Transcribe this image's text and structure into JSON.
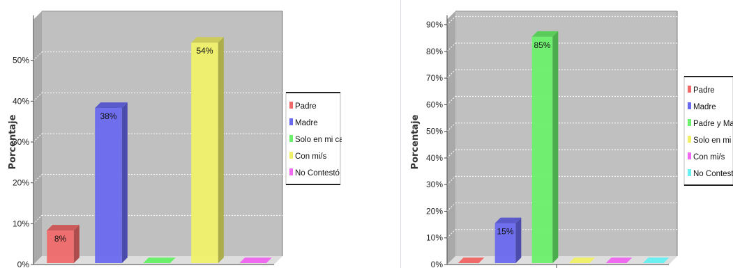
{
  "chart_data": [
    {
      "type": "bar",
      "ylabel": "Porcentaje",
      "ylim": [
        0,
        60
      ],
      "yticks": [
        "0%",
        "10%",
        "20%",
        "30%",
        "40%",
        "50%"
      ],
      "categories": [
        "Padre",
        "Madre",
        "Solo en mi cas",
        "Con mi/s",
        "No Contestó"
      ],
      "values": [
        8,
        38,
        0,
        54,
        0
      ],
      "labels": [
        "8%",
        "38%",
        "",
        "54%",
        ""
      ],
      "colors": [
        "#f06a6a",
        "#6a6af0",
        "#6af06a",
        "#f0f06a",
        "#f06af0"
      ],
      "legend": [
        "Padre",
        "Madre",
        "Solo en mi cas",
        "Con mi/s",
        "No Contestó"
      ],
      "grid": true,
      "legend_position": "right"
    },
    {
      "type": "bar",
      "ylabel": "Porcentaje",
      "ylim": [
        0,
        92
      ],
      "yticks": [
        "0%",
        "10%",
        "20%",
        "30%",
        "40%",
        "50%",
        "60%",
        "70%",
        "80%",
        "90%"
      ],
      "categories": [
        "Padre",
        "Madre",
        "Padre y Madre",
        "Solo en mi cas",
        "Con mi/s",
        "No Contestó"
      ],
      "values": [
        0,
        15,
        85,
        0,
        0,
        0
      ],
      "labels": [
        "",
        "15%",
        "85%",
        "",
        "",
        ""
      ],
      "colors": [
        "#f06a6a",
        "#6a6af0",
        "#6af06a",
        "#f0f06a",
        "#f06af0",
        "#6af0f0"
      ],
      "legend": [
        "Padre",
        "Madre",
        "Padre y Madre",
        "Solo en mi cas",
        "Con mi/s",
        "No Contestó"
      ],
      "grid": true,
      "legend_position": "right"
    }
  ]
}
